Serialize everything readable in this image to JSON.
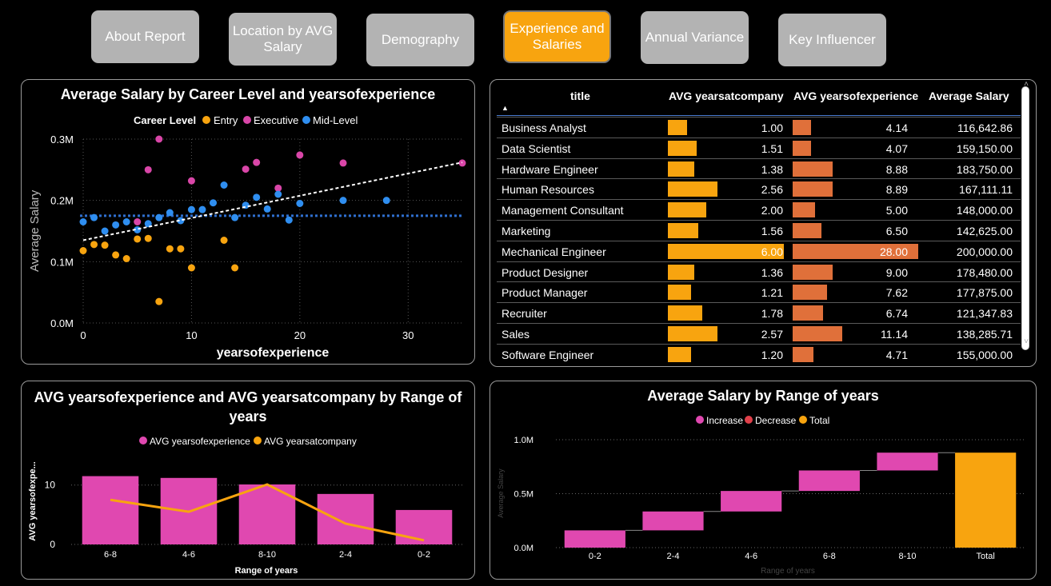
{
  "nav": {
    "buttons": [
      {
        "label": "About Report"
      },
      {
        "label": "Location by AVG Salary"
      },
      {
        "label": "Demography"
      },
      {
        "label": "Experience and Salaries"
      },
      {
        "label": "Annual Variance"
      },
      {
        "label": "Key Influencer"
      }
    ],
    "active_color": "#f8a40f",
    "inactive_color": "#b3b3b3"
  },
  "scatter": {
    "title": "Average Salary by Career Level and yearsofexperience",
    "legend_title": "Career Level",
    "legend": [
      "Entry",
      "Executive",
      "Mid-Level"
    ],
    "xlabel": "yearsofexperience",
    "ylabel": "Average Salary",
    "xticks": [
      "0",
      "10",
      "20",
      "30"
    ],
    "yticks": [
      "0.0M",
      "0.1M",
      "0.2M",
      "0.3M"
    ]
  },
  "table": {
    "headers": [
      "title",
      "AVG yearsatcompany",
      "AVG yearsofexperience",
      "Average Salary"
    ],
    "rows": [
      {
        "title": "Business Analyst",
        "yac": "1.00",
        "yoe": "4.14",
        "salary": "116,642.86"
      },
      {
        "title": "Data Scientist",
        "yac": "1.51",
        "yoe": "4.07",
        "salary": "159,150.00"
      },
      {
        "title": "Hardware Engineer",
        "yac": "1.38",
        "yoe": "8.88",
        "salary": "183,750.00"
      },
      {
        "title": "Human Resources",
        "yac": "2.56",
        "yoe": "8.89",
        "salary": "167,111.11"
      },
      {
        "title": "Management Consultant",
        "yac": "2.00",
        "yoe": "5.00",
        "salary": "148,000.00"
      },
      {
        "title": "Marketing",
        "yac": "1.56",
        "yoe": "6.50",
        "salary": "142,625.00"
      },
      {
        "title": "Mechanical Engineer",
        "yac": "6.00",
        "yoe": "28.00",
        "salary": "200,000.00"
      },
      {
        "title": "Product Designer",
        "yac": "1.36",
        "yoe": "9.00",
        "salary": "178,480.00"
      },
      {
        "title": "Product Manager",
        "yac": "1.21",
        "yoe": "7.62",
        "salary": "177,875.00"
      },
      {
        "title": "Recruiter",
        "yac": "1.78",
        "yoe": "6.74",
        "salary": "121,347.83"
      },
      {
        "title": "Sales",
        "yac": "2.57",
        "yoe": "11.14",
        "salary": "138,285.71"
      },
      {
        "title": "Software Engineer",
        "yac": "1.20",
        "yoe": "4.71",
        "salary": "155,000.00"
      }
    ],
    "bar1_color": "#f8a40f",
    "bar2_color": "#e0703a"
  },
  "combo": {
    "title": "AVG yearsofexperience and AVG yearsatcompany by Range of years",
    "xlabel": "Range of years",
    "ylabel": "AVG yearsofexpe...",
    "yticks": [
      "0",
      "10"
    ]
  },
  "waterfall": {
    "title": "Average Salary by Range of years",
    "xlabel": "Range of years",
    "ylabel": "Average Salary",
    "yticks": [
      "0.0M",
      "0.5M",
      "1.0M"
    ]
  },
  "chart_data": [
    {
      "type": "scatter",
      "title": "Average Salary by Career Level and yearsofexperience",
      "xlabel": "yearsofexperience",
      "ylabel": "Average Salary",
      "xlim": [
        0,
        35
      ],
      "ylim": [
        0,
        300000
      ],
      "series": [
        {
          "name": "Entry",
          "color": "#f8a40f",
          "points": [
            [
              0,
              118000
            ],
            [
              1,
              128000
            ],
            [
              2,
              127000
            ],
            [
              3,
              111000
            ],
            [
              4,
              105000
            ],
            [
              5,
              137000
            ],
            [
              6,
              138000
            ],
            [
              7,
              35000
            ],
            [
              8,
              121000
            ],
            [
              9,
              121000
            ],
            [
              10,
              90000
            ],
            [
              13,
              135000
            ],
            [
              14,
              90000
            ]
          ]
        },
        {
          "name": "Executive",
          "color": "#d946a8",
          "points": [
            [
              5,
              165000
            ],
            [
              6,
              250000
            ],
            [
              7,
              300000
            ],
            [
              10,
              232000
            ],
            [
              15,
              251000
            ],
            [
              16,
              262000
            ],
            [
              18,
              220000
            ],
            [
              20,
              274000
            ],
            [
              24,
              261000
            ],
            [
              35,
              261000
            ]
          ]
        },
        {
          "name": "Mid-Level",
          "color": "#2f8ef0",
          "points": [
            [
              0,
              165000
            ],
            [
              1,
              172000
            ],
            [
              2,
              150000
            ],
            [
              3,
              160000
            ],
            [
              4,
              165000
            ],
            [
              5,
              152000
            ],
            [
              6,
              162000
            ],
            [
              7,
              172000
            ],
            [
              8,
              180000
            ],
            [
              9,
              167000
            ],
            [
              10,
              185000
            ],
            [
              11,
              185000
            ],
            [
              12,
              196000
            ],
            [
              13,
              225000
            ],
            [
              14,
              172000
            ],
            [
              15,
              192000
            ],
            [
              16,
              205000
            ],
            [
              17,
              186000
            ],
            [
              18,
              210000
            ],
            [
              19,
              168000
            ],
            [
              20,
              195000
            ],
            [
              24,
              200000
            ],
            [
              28,
              200000
            ]
          ]
        }
      ],
      "trendline": {
        "from": [
          0,
          135000
        ],
        "to": [
          35,
          262000
        ],
        "color": "#ffffff"
      },
      "reference_line": {
        "y": 175000,
        "color": "#2f6fd0"
      },
      "legend_position": "top"
    },
    {
      "type": "table",
      "columns": [
        "title",
        "AVG yearsatcompany",
        "AVG yearsofexperience",
        "Average Salary"
      ],
      "rows": [
        [
          "Business Analyst",
          1.0,
          4.14,
          116642.86
        ],
        [
          "Data Scientist",
          1.51,
          4.07,
          159150.0
        ],
        [
          "Hardware Engineer",
          1.38,
          8.88,
          183750.0
        ],
        [
          "Human Resources",
          2.56,
          8.89,
          167111.11
        ],
        [
          "Management Consultant",
          2.0,
          5.0,
          148000.0
        ],
        [
          "Marketing",
          1.56,
          6.5,
          142625.0
        ],
        [
          "Mechanical Engineer",
          6.0,
          28.0,
          200000.0
        ],
        [
          "Product Designer",
          1.36,
          9.0,
          178480.0
        ],
        [
          "Product Manager",
          1.21,
          7.62,
          177875.0
        ],
        [
          "Recruiter",
          1.78,
          6.74,
          121347.83
        ],
        [
          "Sales",
          2.57,
          11.14,
          138285.71
        ],
        [
          "Software Engineer",
          1.2,
          4.71,
          155000.0
        ]
      ]
    },
    {
      "type": "bar",
      "title": "AVG yearsofexperience and AVG yearsatcompany by Range of years",
      "categories": [
        "6-8",
        "4-6",
        "8-10",
        "2-4",
        "0-2"
      ],
      "series": [
        {
          "name": "AVG yearsofexperience",
          "kind": "bar",
          "color": "#e048b0",
          "values": [
            11.5,
            11.2,
            10.1,
            8.5,
            5.8
          ]
        },
        {
          "name": "AVG yearsatcompany",
          "kind": "line",
          "color": "#f8a40f",
          "values": [
            7.5,
            5.5,
            10.1,
            3.5,
            0.7
          ]
        }
      ],
      "xlabel": "Range of years",
      "ylabel": "AVG yearsofexpe...",
      "ylim": [
        0,
        14
      ],
      "legend_position": "top"
    },
    {
      "type": "bar",
      "subtype": "waterfall",
      "title": "Average Salary by Range of years",
      "categories": [
        "0-2",
        "2-4",
        "4-6",
        "6-8",
        "8-10",
        "Total"
      ],
      "steps": [
        {
          "category": "0-2",
          "start": 0,
          "end": 160000,
          "kind": "Increase"
        },
        {
          "category": "2-4",
          "start": 160000,
          "end": 335000,
          "kind": "Increase"
        },
        {
          "category": "4-6",
          "start": 335000,
          "end": 525000,
          "kind": "Increase"
        },
        {
          "category": "6-8",
          "start": 525000,
          "end": 715000,
          "kind": "Increase"
        },
        {
          "category": "8-10",
          "start": 715000,
          "end": 880000,
          "kind": "Increase"
        },
        {
          "category": "Total",
          "start": 0,
          "end": 880000,
          "kind": "Total"
        }
      ],
      "legend": [
        {
          "name": "Increase",
          "color": "#e048b0"
        },
        {
          "name": "Decrease",
          "color": "#e0404a"
        },
        {
          "name": "Total",
          "color": "#f8a40f"
        }
      ],
      "xlabel": "Range of years",
      "ylabel": "Average Salary",
      "ylim": [
        0,
        1000000
      ]
    }
  ]
}
